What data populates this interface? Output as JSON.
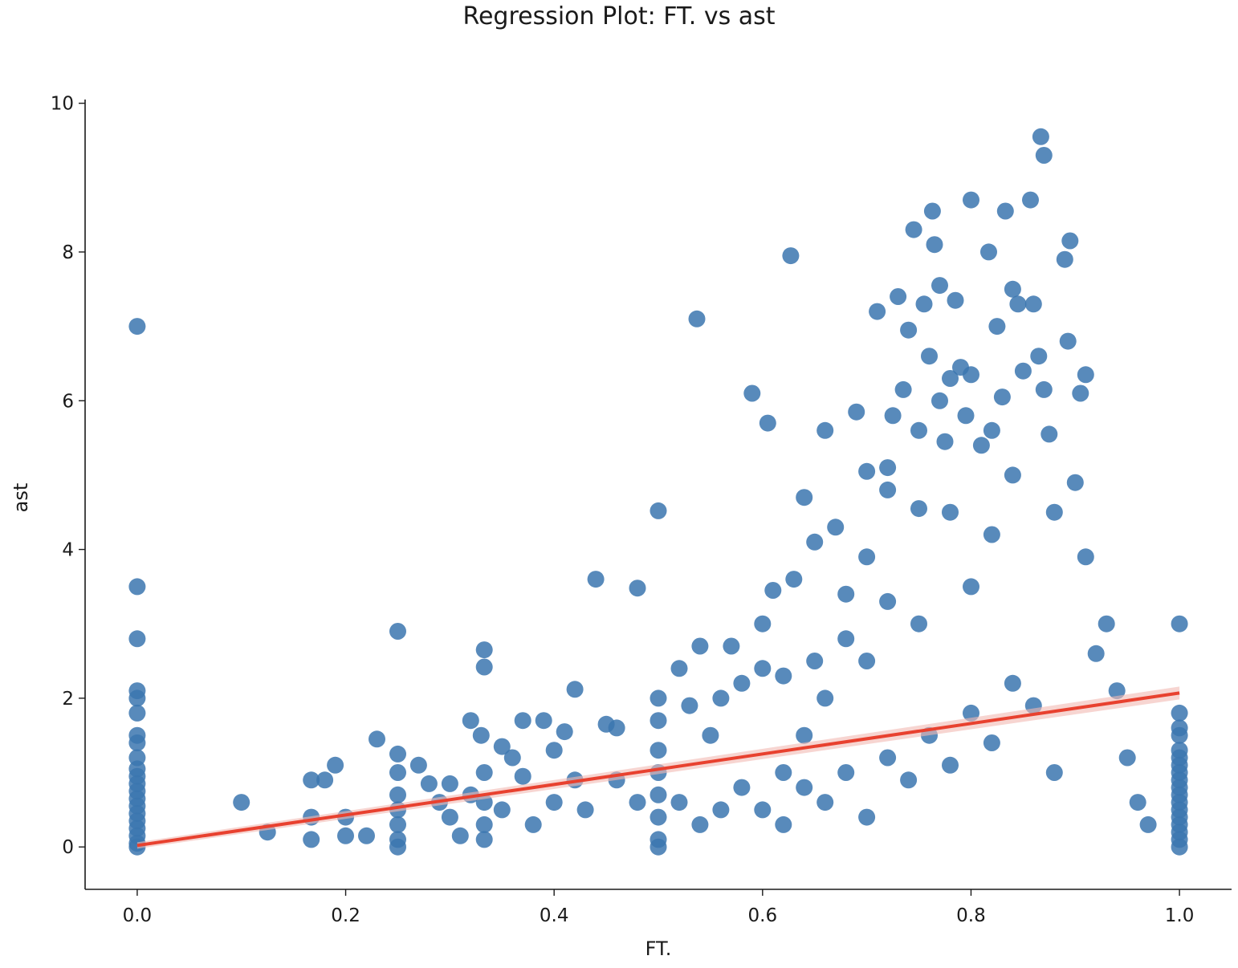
{
  "chart_data": {
    "type": "scatter",
    "title": "Regression Plot: FT. vs ast",
    "xlabel": "FT.",
    "ylabel": "ast",
    "xlim": [
      -0.05,
      1.05
    ],
    "ylim": [
      -0.57,
      10.05
    ],
    "xticks": [
      0.0,
      0.2,
      0.4,
      0.6,
      0.8,
      1.0
    ],
    "xtick_labels": [
      "0.0",
      "0.2",
      "0.4",
      "0.6",
      "0.8",
      "1.0"
    ],
    "yticks": [
      0,
      2,
      4,
      6,
      8,
      10
    ],
    "ytick_labels": [
      "0",
      "2",
      "4",
      "6",
      "8",
      "10"
    ],
    "grid": false,
    "legend": "none",
    "point_color": "#3b75af",
    "line_color": "#e8412f",
    "band_color": "#f2b9b3",
    "points": [
      [
        0.0,
        7.0
      ],
      [
        0.0,
        3.5
      ],
      [
        0.0,
        2.8
      ],
      [
        0.0,
        2.1
      ],
      [
        0.0,
        2.0
      ],
      [
        0.0,
        1.8
      ],
      [
        0.0,
        1.5
      ],
      [
        0.0,
        1.4
      ],
      [
        0.0,
        1.2
      ],
      [
        0.0,
        1.05
      ],
      [
        0.0,
        0.95
      ],
      [
        0.0,
        0.85
      ],
      [
        0.0,
        0.75
      ],
      [
        0.0,
        0.65
      ],
      [
        0.0,
        0.55
      ],
      [
        0.0,
        0.45
      ],
      [
        0.0,
        0.35
      ],
      [
        0.0,
        0.25
      ],
      [
        0.0,
        0.15
      ],
      [
        0.0,
        0.05
      ],
      [
        0.0,
        0.0
      ],
      [
        1.0,
        3.0
      ],
      [
        1.0,
        1.8
      ],
      [
        1.0,
        1.6
      ],
      [
        1.0,
        1.5
      ],
      [
        1.0,
        1.3
      ],
      [
        1.0,
        1.2
      ],
      [
        1.0,
        1.1
      ],
      [
        1.0,
        1.0
      ],
      [
        1.0,
        0.9
      ],
      [
        1.0,
        0.8
      ],
      [
        1.0,
        0.7
      ],
      [
        1.0,
        0.6
      ],
      [
        1.0,
        0.5
      ],
      [
        1.0,
        0.4
      ],
      [
        1.0,
        0.3
      ],
      [
        1.0,
        0.2
      ],
      [
        1.0,
        0.1
      ],
      [
        1.0,
        0.0
      ],
      [
        0.1,
        0.6
      ],
      [
        0.125,
        0.2
      ],
      [
        0.167,
        0.9
      ],
      [
        0.167,
        0.4
      ],
      [
        0.167,
        0.1
      ],
      [
        0.18,
        0.9
      ],
      [
        0.19,
        1.1
      ],
      [
        0.2,
        0.4
      ],
      [
        0.2,
        0.15
      ],
      [
        0.22,
        0.15
      ],
      [
        0.23,
        1.45
      ],
      [
        0.25,
        2.9
      ],
      [
        0.25,
        1.25
      ],
      [
        0.25,
        1.0
      ],
      [
        0.25,
        0.7
      ],
      [
        0.25,
        0.5
      ],
      [
        0.25,
        0.3
      ],
      [
        0.25,
        0.1
      ],
      [
        0.25,
        0.0
      ],
      [
        0.27,
        1.1
      ],
      [
        0.28,
        0.85
      ],
      [
        0.29,
        0.6
      ],
      [
        0.3,
        0.85
      ],
      [
        0.3,
        0.4
      ],
      [
        0.31,
        0.15
      ],
      [
        0.32,
        0.7
      ],
      [
        0.32,
        1.7
      ],
      [
        0.33,
        1.5
      ],
      [
        0.333,
        2.65
      ],
      [
        0.333,
        2.42
      ],
      [
        0.333,
        1.0
      ],
      [
        0.333,
        0.6
      ],
      [
        0.333,
        0.3
      ],
      [
        0.333,
        0.1
      ],
      [
        0.35,
        1.35
      ],
      [
        0.35,
        0.5
      ],
      [
        0.36,
        1.2
      ],
      [
        0.37,
        1.7
      ],
      [
        0.37,
        0.95
      ],
      [
        0.38,
        0.3
      ],
      [
        0.39,
        1.7
      ],
      [
        0.4,
        1.3
      ],
      [
        0.4,
        0.6
      ],
      [
        0.41,
        1.55
      ],
      [
        0.42,
        2.12
      ],
      [
        0.42,
        0.9
      ],
      [
        0.43,
        0.5
      ],
      [
        0.44,
        3.6
      ],
      [
        0.45,
        1.65
      ],
      [
        0.46,
        1.6
      ],
      [
        0.46,
        0.9
      ],
      [
        0.48,
        3.48
      ],
      [
        0.48,
        0.6
      ],
      [
        0.5,
        4.52
      ],
      [
        0.5,
        2.0
      ],
      [
        0.5,
        1.7
      ],
      [
        0.5,
        1.3
      ],
      [
        0.5,
        1.0
      ],
      [
        0.5,
        0.7
      ],
      [
        0.5,
        0.4
      ],
      [
        0.5,
        0.1
      ],
      [
        0.5,
        0.0
      ],
      [
        0.52,
        2.4
      ],
      [
        0.53,
        1.9
      ],
      [
        0.537,
        7.1
      ],
      [
        0.54,
        2.7
      ],
      [
        0.55,
        1.5
      ],
      [
        0.56,
        2.0
      ],
      [
        0.57,
        2.7
      ],
      [
        0.58,
        2.2
      ],
      [
        0.59,
        6.1
      ],
      [
        0.6,
        3.0
      ],
      [
        0.6,
        2.4
      ],
      [
        0.605,
        5.7
      ],
      [
        0.61,
        3.45
      ],
      [
        0.62,
        2.3
      ],
      [
        0.627,
        7.95
      ],
      [
        0.63,
        3.6
      ],
      [
        0.64,
        4.7
      ],
      [
        0.65,
        4.1
      ],
      [
        0.65,
        2.5
      ],
      [
        0.66,
        5.6
      ],
      [
        0.67,
        4.3
      ],
      [
        0.68,
        3.4
      ],
      [
        0.69,
        5.85
      ],
      [
        0.7,
        5.05
      ],
      [
        0.7,
        3.9
      ],
      [
        0.71,
        7.2
      ],
      [
        0.72,
        5.1
      ],
      [
        0.72,
        4.8
      ],
      [
        0.725,
        5.8
      ],
      [
        0.73,
        7.4
      ],
      [
        0.735,
        6.15
      ],
      [
        0.74,
        6.95
      ],
      [
        0.745,
        8.3
      ],
      [
        0.75,
        5.6
      ],
      [
        0.75,
        4.55
      ],
      [
        0.755,
        7.3
      ],
      [
        0.76,
        6.6
      ],
      [
        0.763,
        8.55
      ],
      [
        0.765,
        8.1
      ],
      [
        0.77,
        7.55
      ],
      [
        0.77,
        6.0
      ],
      [
        0.775,
        5.45
      ],
      [
        0.78,
        6.3
      ],
      [
        0.785,
        7.35
      ],
      [
        0.79,
        6.45
      ],
      [
        0.795,
        5.8
      ],
      [
        0.8,
        8.7
      ],
      [
        0.8,
        6.35
      ],
      [
        0.81,
        5.4
      ],
      [
        0.817,
        8.0
      ],
      [
        0.82,
        5.6
      ],
      [
        0.825,
        7.0
      ],
      [
        0.83,
        6.05
      ],
      [
        0.833,
        8.55
      ],
      [
        0.84,
        7.5
      ],
      [
        0.84,
        5.0
      ],
      [
        0.845,
        7.3
      ],
      [
        0.85,
        6.4
      ],
      [
        0.857,
        8.7
      ],
      [
        0.86,
        7.3
      ],
      [
        0.865,
        6.6
      ],
      [
        0.867,
        9.55
      ],
      [
        0.87,
        9.3
      ],
      [
        0.87,
        6.15
      ],
      [
        0.875,
        5.55
      ],
      [
        0.88,
        4.5
      ],
      [
        0.89,
        7.9
      ],
      [
        0.893,
        6.8
      ],
      [
        0.895,
        8.15
      ],
      [
        0.9,
        4.9
      ],
      [
        0.905,
        6.1
      ],
      [
        0.91,
        6.35
      ],
      [
        0.91,
        3.9
      ],
      [
        0.92,
        2.6
      ],
      [
        0.93,
        3.0
      ],
      [
        0.94,
        2.1
      ],
      [
        0.95,
        1.2
      ],
      [
        0.96,
        0.6
      ],
      [
        0.97,
        0.3
      ],
      [
        0.6,
        0.5
      ],
      [
        0.62,
        0.3
      ],
      [
        0.64,
        0.8
      ],
      [
        0.66,
        0.6
      ],
      [
        0.68,
        1.0
      ],
      [
        0.7,
        0.4
      ],
      [
        0.72,
        1.2
      ],
      [
        0.74,
        0.9
      ],
      [
        0.76,
        1.5
      ],
      [
        0.78,
        1.1
      ],
      [
        0.8,
        1.8
      ],
      [
        0.82,
        1.4
      ],
      [
        0.84,
        2.2
      ],
      [
        0.86,
        1.9
      ],
      [
        0.88,
        1.0
      ],
      [
        0.7,
        2.5
      ],
      [
        0.75,
        3.0
      ],
      [
        0.8,
        3.5
      ],
      [
        0.82,
        4.2
      ],
      [
        0.78,
        4.5
      ],
      [
        0.72,
        3.3
      ],
      [
        0.68,
        2.8
      ],
      [
        0.66,
        2.0
      ],
      [
        0.64,
        1.5
      ],
      [
        0.62,
        1.0
      ],
      [
        0.58,
        0.8
      ],
      [
        0.56,
        0.5
      ],
      [
        0.54,
        0.3
      ],
      [
        0.52,
        0.6
      ]
    ],
    "regression": {
      "x": [
        0.0,
        1.0
      ],
      "y": [
        0.02,
        2.07
      ]
    }
  }
}
